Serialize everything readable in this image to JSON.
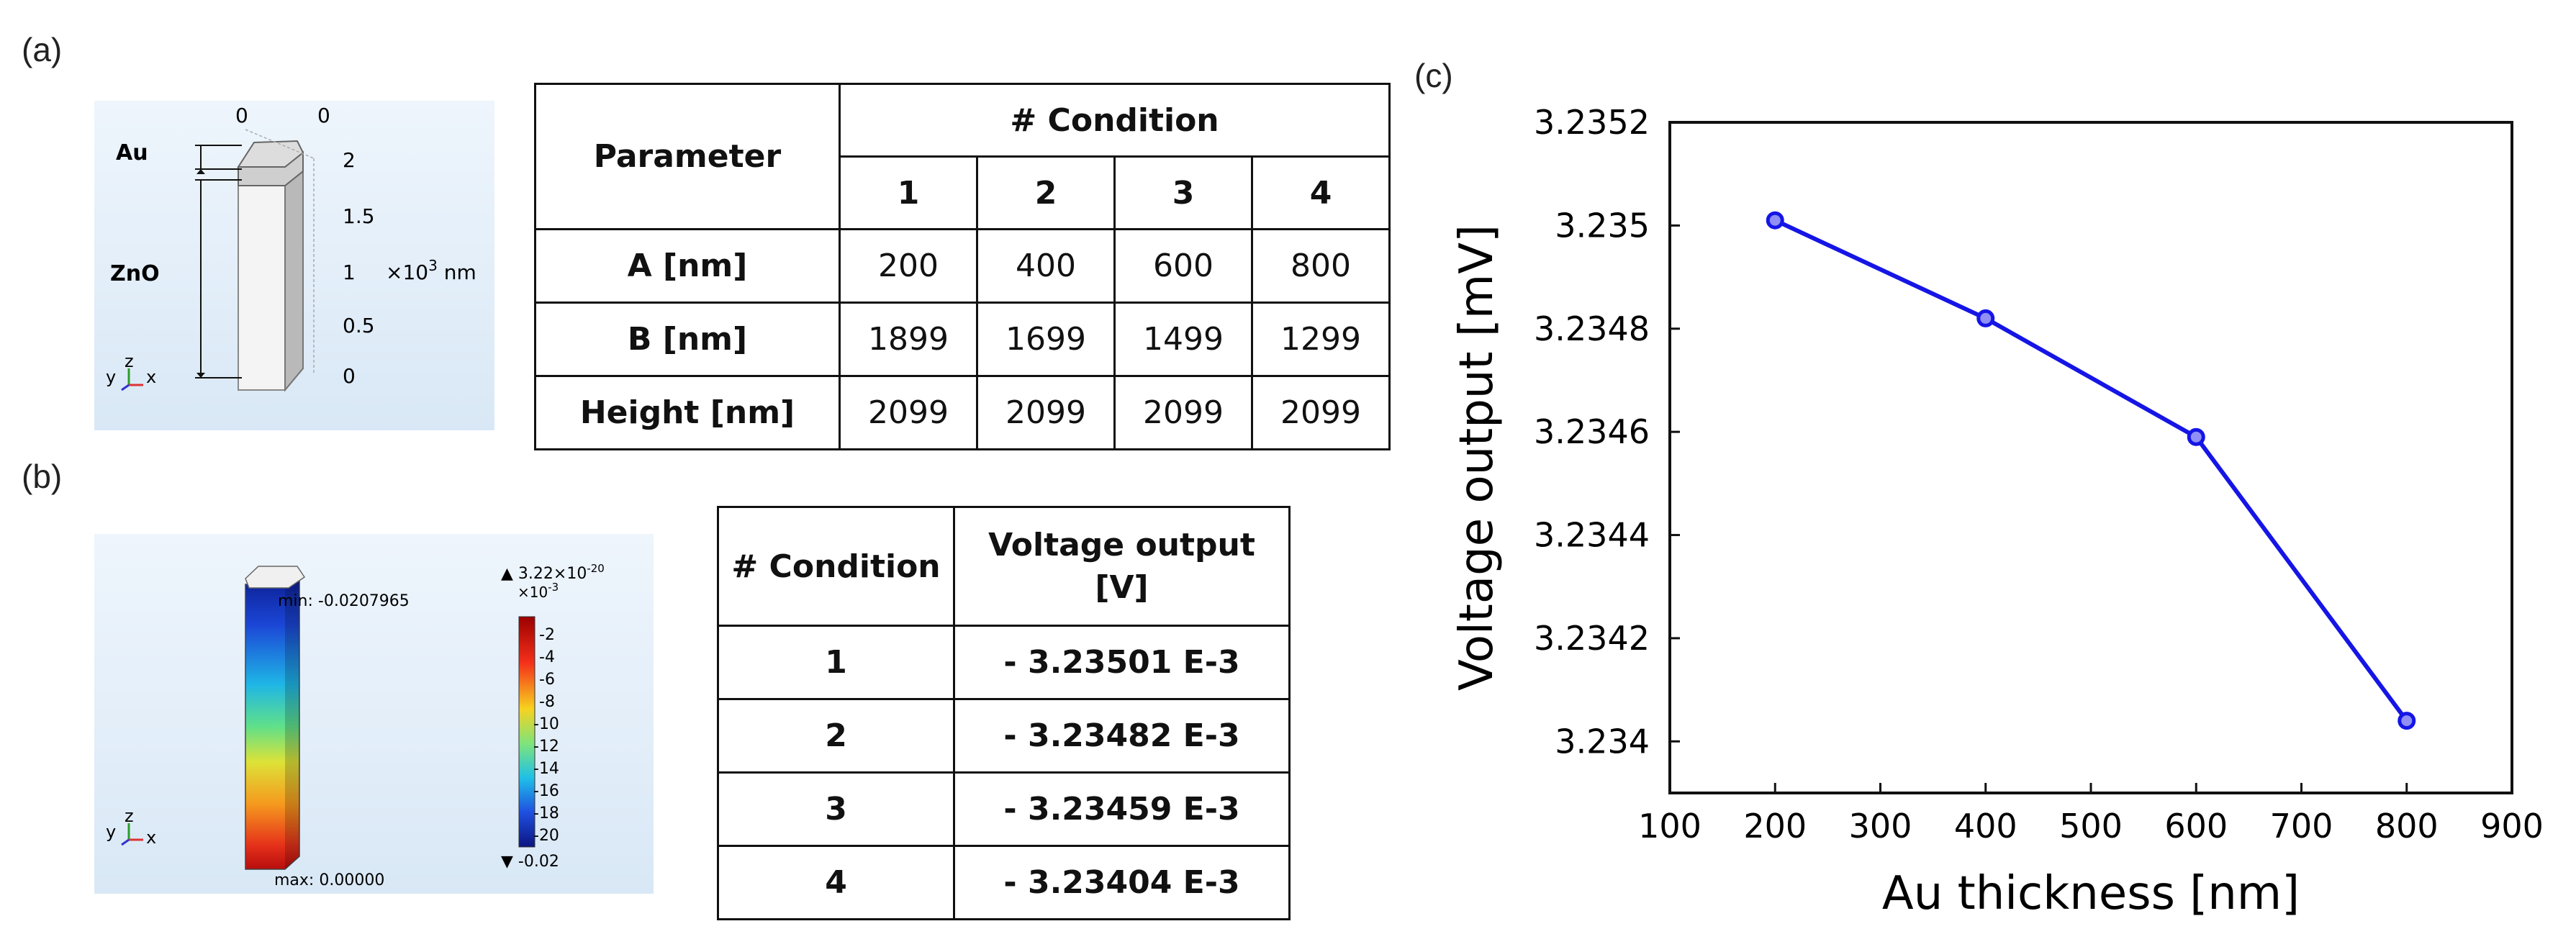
{
  "panels": {
    "a": "(a)",
    "b": "(b)",
    "c": "(c)"
  },
  "geometry_image": {
    "au_label": "Au",
    "zno_label": "ZnO",
    "axis_ticks": [
      "2",
      "1.5",
      "1",
      "0.5",
      "0"
    ],
    "top_ticks": [
      "0",
      "0"
    ],
    "unit_prefix": "×10",
    "unit_exp": "3",
    "unit_suffix": " nm",
    "triad": {
      "y": "y",
      "z": "z",
      "x": "x"
    }
  },
  "params_table": {
    "parameter_header": "Parameter",
    "condition_header": "# Condition",
    "conditions": [
      "1",
      "2",
      "3",
      "4"
    ],
    "rows": [
      {
        "label": "A [nm]",
        "values": [
          "200",
          "400",
          "600",
          "800"
        ]
      },
      {
        "label": "B [nm]",
        "values": [
          "1899",
          "1699",
          "1499",
          "1299"
        ]
      },
      {
        "label": "Height [nm]",
        "values": [
          "2099",
          "2099",
          "2099",
          "2099"
        ]
      }
    ]
  },
  "voltage_image": {
    "colorbar_top_prefix": "▲ 3.22×10",
    "colorbar_top_exp": "-20",
    "colorbar_scale_prefix": "×10",
    "colorbar_scale_exp": "-3",
    "colorbar_ticks": [
      "-2",
      "-4",
      "-6",
      "-8",
      "-10",
      "-12",
      "-14",
      "-16",
      "-18",
      "-20"
    ],
    "colorbar_bottom": "▼ -0.02",
    "min_label": "min: -0.0207965",
    "max_label": "max: 0.00000",
    "triad": {
      "y": "y",
      "z": "z",
      "x": "x"
    }
  },
  "voltage_table": {
    "condition_header": "# Condition",
    "voltage_header_line1": "Voltage output",
    "voltage_header_line2": "[V]",
    "rows": [
      {
        "condition": "1",
        "voltage": "- 3.23501 E-3"
      },
      {
        "condition": "2",
        "voltage": "- 3.23482 E-3"
      },
      {
        "condition": "3",
        "voltage": "- 3.23459 E-3"
      },
      {
        "condition": "4",
        "voltage": "- 3.23404 E-3"
      }
    ]
  },
  "chart_data": {
    "type": "line",
    "x": [
      200,
      400,
      600,
      800
    ],
    "series": [
      {
        "values": [
          3.23501,
          3.23482,
          3.23459,
          3.23404
        ],
        "color": "#1515e6"
      }
    ],
    "xlabel": "Au thickness [nm]",
    "ylabel": "Voltage output [mV]",
    "xlim": [
      100,
      900
    ],
    "ylim": [
      3.2339,
      3.2352
    ],
    "xticks": [
      "100",
      "200",
      "300",
      "400",
      "500",
      "600",
      "700",
      "800",
      "900"
    ],
    "yticks": [
      "3.234",
      "3.2342",
      "3.2344",
      "3.2346",
      "3.2348",
      "3.235",
      "3.2352"
    ],
    "grid": false,
    "marker": "circle"
  }
}
